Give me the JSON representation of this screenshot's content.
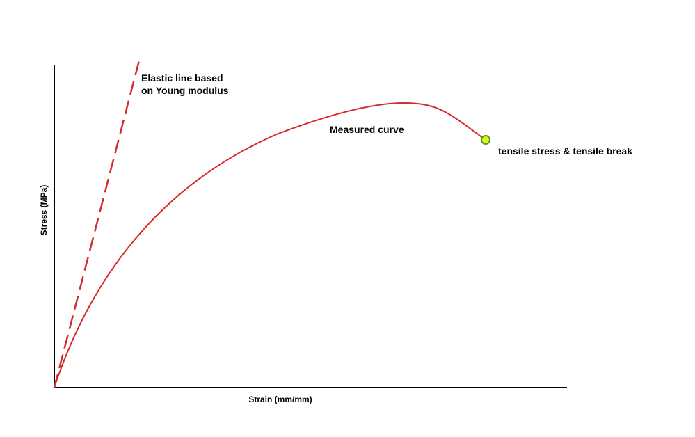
{
  "axes": {
    "y_label": "Stress (MPa)",
    "x_label": "Strain (mm/mm)"
  },
  "annotations": {
    "elastic_line": [
      "Elastic line based",
      "on Young modulus"
    ],
    "measured_curve": "Measured curve",
    "break_point": "tensile stress & tensile break"
  }
}
